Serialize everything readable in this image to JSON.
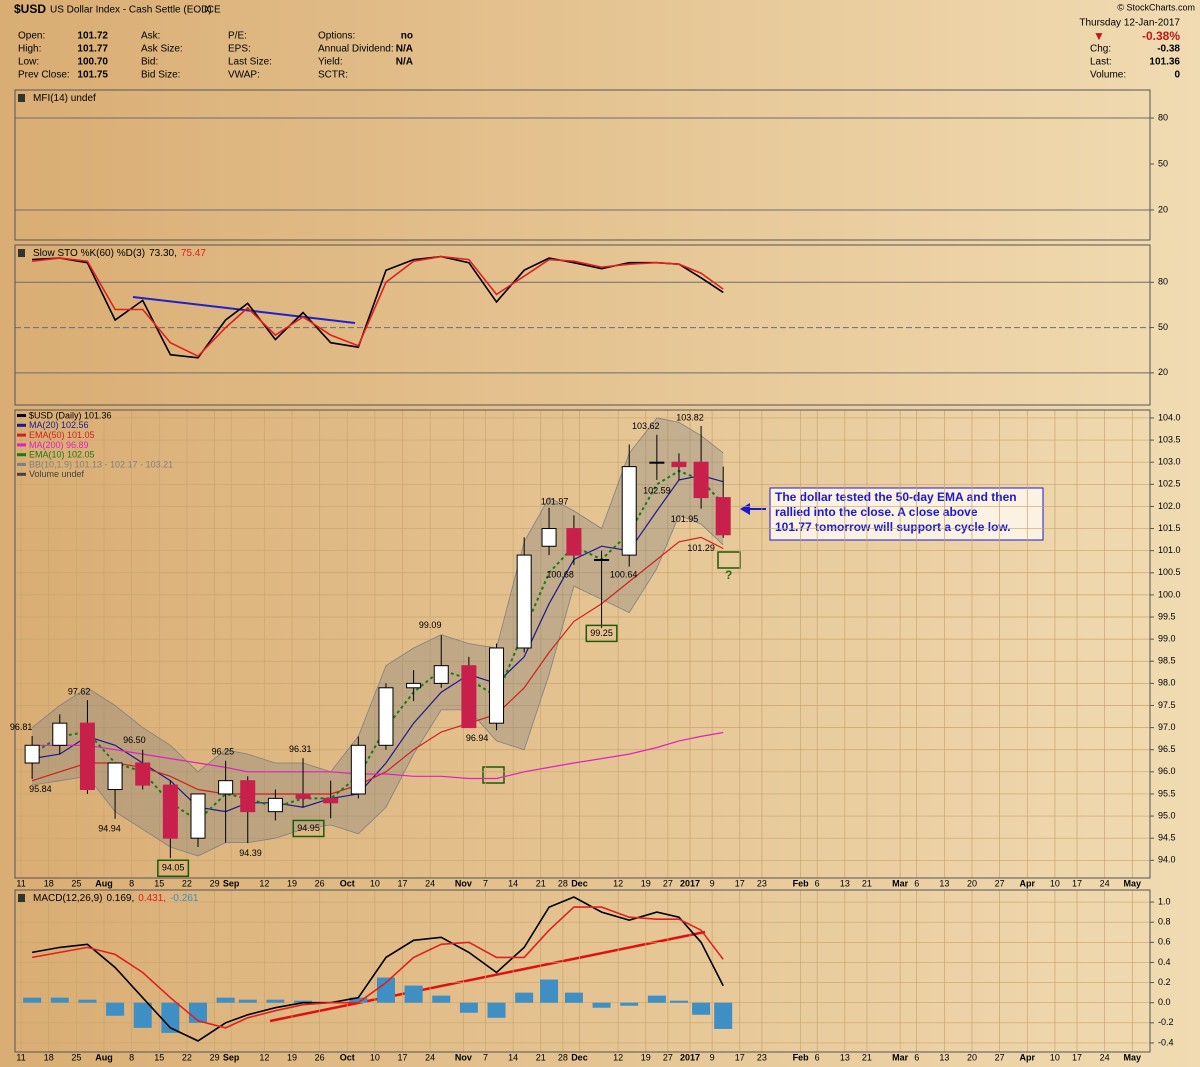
{
  "header": {
    "symbol": "$USD",
    "name": "US Dollar Index - Cash Settle (EOD)",
    "exchange": "ICE",
    "copyright": "© StockCharts.com",
    "columns": [
      [
        {
          "label": "Open:",
          "value": "101.72"
        },
        {
          "label": "High:",
          "value": "101.77"
        },
        {
          "label": "Low:",
          "value": "100.70"
        },
        {
          "label": "Prev Close:",
          "value": "101.75"
        }
      ],
      [
        {
          "label": "Ask:"
        },
        {
          "label": "Ask Size:"
        },
        {
          "label": "Bid:"
        },
        {
          "label": "Bid Size:"
        }
      ],
      [
        {
          "label": "P/E:"
        },
        {
          "label": "EPS:"
        },
        {
          "label": "Last Size:"
        },
        {
          "label": "VWAP:"
        }
      ],
      [
        {
          "label": "Options:",
          "value": "no"
        },
        {
          "label": "Annual Dividend:",
          "value": "N/A"
        },
        {
          "label": "Yield:",
          "value": "N/A"
        },
        {
          "label": "SCTR:"
        }
      ]
    ],
    "date": "Thursday  12-Jan-2017",
    "change_pct": "-0.38%",
    "right_rows": [
      {
        "label": "Chg:",
        "value": "-0.38"
      },
      {
        "label": "Last:",
        "value": "101.36"
      },
      {
        "label": "Volume:",
        "value": "0"
      }
    ]
  },
  "callout": {
    "lines": [
      "The dollar tested the 50-day EMA and then",
      "rallied into the close. A close above",
      "101.77 tomorrow will support a cycle low."
    ]
  },
  "chart_data": [
    {
      "type": "line",
      "title": "MFI(14) undef",
      "ylim": [
        0.4,
        98.3
      ],
      "yticks": [
        80,
        50,
        20
      ],
      "series": []
    },
    {
      "type": "line",
      "title": "Slow STO %K(60) %D(3)",
      "ylim": [
        -1.3,
        104.7
      ],
      "yticks": [
        80,
        50,
        20
      ],
      "midline": "dashed",
      "x": [
        2,
        7,
        12,
        17,
        22,
        27,
        32,
        37,
        41,
        46,
        51,
        56,
        61,
        66,
        71,
        76,
        81,
        86,
        91,
        95.5,
        100,
        105,
        110,
        115,
        119,
        123,
        127
      ],
      "series": [
        {
          "name": "73.30,",
          "color": "#000000",
          "values": [
            95,
            96,
            93,
            55,
            68,
            32,
            30,
            55,
            66,
            42,
            60,
            40,
            37,
            88,
            95,
            97,
            93,
            67,
            88,
            96,
            93,
            89,
            93,
            93,
            92,
            83,
            73.3
          ]
        },
        {
          "name": "75.47",
          "color": "#e02020",
          "values": [
            94,
            96,
            94,
            62,
            62,
            40,
            31,
            50,
            63,
            45,
            57,
            45,
            38,
            80,
            94,
            97,
            95,
            72,
            84,
            95,
            94,
            90,
            92,
            93,
            92,
            86,
            75.47
          ]
        }
      ]
    },
    {
      "type": "candlestick",
      "name": "$USD (Daily) 101.36",
      "ylim": [
        93.6,
        104.18
      ],
      "x_axis_labels": true,
      "xlim": [
        -1.1,
        204.2
      ],
      "xticks": [
        {
          "value": 0,
          "label": "11"
        },
        {
          "value": 5,
          "label": "18"
        },
        {
          "value": 10,
          "label": "25"
        },
        {
          "value": 15,
          "label": "Aug"
        },
        {
          "value": 20,
          "label": "8"
        },
        {
          "value": 25,
          "label": "15"
        },
        {
          "value": 30,
          "label": "22"
        },
        {
          "value": 35,
          "label": "29"
        },
        {
          "value": 38,
          "label": "Sep"
        },
        {
          "value": 44,
          "label": "12"
        },
        {
          "value": 49,
          "label": "19"
        },
        {
          "value": 54,
          "label": "26"
        },
        {
          "value": 59,
          "label": "Oct"
        },
        {
          "value": 64,
          "label": "10"
        },
        {
          "value": 69,
          "label": "17"
        },
        {
          "value": 74,
          "label": "24"
        },
        {
          "value": 80,
          "label": "Nov"
        },
        {
          "value": 84,
          "label": "7"
        },
        {
          "value": 89,
          "label": "14"
        },
        {
          "value": 94,
          "label": "21"
        },
        {
          "value": 98,
          "label": "28"
        },
        {
          "value": 101,
          "label": "Dec"
        },
        {
          "value": 108,
          "label": "12"
        },
        {
          "value": 113,
          "label": "19"
        },
        {
          "value": 117,
          "label": "27"
        },
        {
          "value": 121,
          "label": "2017"
        },
        {
          "value": 125,
          "label": "9"
        },
        {
          "value": 130,
          "label": "17"
        },
        {
          "value": 134,
          "label": "23"
        },
        {
          "value": 141,
          "label": "Feb"
        },
        {
          "value": 144,
          "label": "6"
        },
        {
          "value": 149,
          "label": "13"
        },
        {
          "value": 153,
          "label": "21"
        },
        {
          "value": 159,
          "label": "Mar"
        },
        {
          "value": 162,
          "label": "6"
        },
        {
          "value": 167,
          "label": "13"
        },
        {
          "value": 172,
          "label": "20"
        },
        {
          "value": 177,
          "label": "27"
        },
        {
          "value": 182,
          "label": "Apr"
        },
        {
          "value": 187,
          "label": "10"
        },
        {
          "value": 191,
          "label": "17"
        },
        {
          "value": 196,
          "label": "24"
        },
        {
          "value": 201,
          "label": "May"
        }
      ],
      "yticks": [
        {
          "value": 104,
          "label": "104.0"
        },
        {
          "value": 103.5,
          "label": "103.5"
        },
        {
          "value": 103,
          "label": "103.0"
        },
        {
          "value": 102.5,
          "label": "102.5"
        },
        {
          "value": 102,
          "label": "102.0"
        },
        {
          "value": 101.5,
          "label": "101.5"
        },
        {
          "value": 101,
          "label": "101.0"
        },
        {
          "value": 100.5,
          "label": "100.5"
        },
        {
          "value": 100,
          "label": "100.0"
        },
        {
          "value": 99.5,
          "label": "99.5"
        },
        {
          "value": 99,
          "label": "99.0"
        },
        {
          "value": 98.5,
          "label": "98.5"
        },
        {
          "value": 98,
          "label": "98.0"
        },
        {
          "value": 97.5,
          "label": "97.5"
        },
        {
          "value": 97,
          "label": "97.0"
        },
        {
          "value": 96.5,
          "label": "96.5"
        },
        {
          "value": 96,
          "label": "96.0"
        },
        {
          "value": 95.5,
          "label": "95.5"
        },
        {
          "value": 95,
          "label": "95.0"
        },
        {
          "value": 94.5,
          "label": "94.5"
        },
        {
          "value": 94,
          "label": "94.0"
        }
      ],
      "x": [
        2,
        7,
        12,
        17,
        22,
        27,
        32,
        37,
        41,
        46,
        51,
        56,
        61,
        66,
        71,
        76,
        81,
        86,
        91,
        95.5,
        100,
        105,
        110,
        115,
        119,
        123,
        127
      ],
      "open": [
        96.2,
        96.6,
        97.1,
        95.6,
        96.2,
        95.7,
        94.5,
        95.5,
        95.8,
        95.1,
        95.5,
        95.4,
        95.5,
        96.6,
        97.9,
        98.0,
        98.4,
        97.1,
        98.8,
        101.1,
        101.5,
        100.8,
        100.9,
        103.0,
        103.0,
        103.0,
        102.2
      ],
      "high": [
        96.81,
        97.3,
        97.62,
        96.2,
        96.5,
        95.8,
        95.5,
        96.25,
        95.9,
        95.6,
        96.31,
        95.8,
        96.8,
        98.0,
        98.3,
        99.09,
        98.6,
        98.9,
        101.3,
        101.97,
        101.8,
        101.0,
        103.4,
        103.62,
        103.2,
        103.82,
        102.9
      ],
      "low": [
        95.84,
        96.4,
        95.5,
        94.94,
        95.6,
        94.05,
        94.3,
        94.4,
        94.39,
        94.9,
        95.2,
        94.95,
        95.4,
        96.5,
        97.6,
        97.9,
        97.1,
        96.94,
        98.7,
        100.9,
        100.68,
        99.25,
        100.64,
        102.6,
        102.59,
        101.95,
        101.29
      ],
      "close": [
        96.6,
        97.1,
        95.6,
        96.2,
        95.7,
        94.5,
        95.5,
        95.8,
        95.1,
        95.4,
        95.4,
        95.3,
        96.6,
        97.9,
        98.0,
        98.4,
        97.0,
        98.8,
        100.9,
        101.5,
        100.9,
        100.8,
        102.9,
        103.0,
        102.9,
        102.2,
        101.36
      ],
      "up_color": "#000000",
      "down_color": "#c8204a",
      "band": {
        "name": "BB(10,1.9) 101.13 - 102.17 - 103.21",
        "color": "#808080",
        "upper": [
          97.0,
          97.5,
          97.9,
          97.5,
          97.0,
          96.6,
          96.0,
          96.5,
          96.4,
          96.2,
          96.2,
          96.0,
          96.8,
          98.4,
          98.8,
          99.1,
          98.9,
          98.8,
          101.2,
          102.2,
          101.9,
          101.5,
          103.2,
          104.0,
          103.9,
          103.6,
          103.21
        ],
        "lower": [
          95.7,
          95.8,
          95.9,
          95.1,
          94.7,
          94.3,
          94.1,
          94.4,
          94.4,
          94.5,
          94.7,
          94.8,
          94.6,
          95.2,
          96.4,
          97.4,
          97.4,
          96.7,
          96.5,
          98.2,
          100.2,
          99.9,
          99.6,
          100.6,
          101.8,
          101.6,
          101.13
        ]
      },
      "overlays": [
        {
          "name": "MA(20) 102.56",
          "color": "#1a1a8c",
          "values": [
            96.3,
            96.4,
            96.8,
            96.6,
            96.2,
            95.8,
            95.2,
            95.1,
            95.3,
            95.3,
            95.2,
            95.4,
            95.5,
            96.2,
            97.1,
            97.8,
            98.2,
            98.0,
            98.6,
            99.8,
            100.8,
            101.1,
            101.0,
            101.9,
            102.6,
            102.7,
            102.56
          ]
        },
        {
          "name": "EMA(50) 101.05",
          "color": "#cc2222",
          "values": [
            95.8,
            96.0,
            96.2,
            96.2,
            96.1,
            95.9,
            95.6,
            95.5,
            95.5,
            95.5,
            95.5,
            95.5,
            95.7,
            96.0,
            96.5,
            96.9,
            97.1,
            97.3,
            97.9,
            98.7,
            99.4,
            99.8,
            100.3,
            100.8,
            101.2,
            101.3,
            101.05
          ]
        },
        {
          "name": "MA(200) 96.89",
          "color": "#e020c0",
          "values": [
            96.6,
            96.6,
            96.6,
            96.5,
            96.4,
            96.3,
            96.2,
            96.1,
            96.0,
            96.0,
            96.0,
            96.0,
            95.95,
            95.95,
            95.9,
            95.9,
            95.85,
            95.85,
            96.0,
            96.1,
            96.2,
            96.3,
            96.4,
            96.55,
            96.7,
            96.8,
            96.89
          ]
        },
        {
          "name": "EMA(10) 102.05",
          "color": "#1a7a1a",
          "style": "dashed",
          "values": [
            96.4,
            96.8,
            96.9,
            96.2,
            96.0,
            95.3,
            94.9,
            95.5,
            95.4,
            95.2,
            95.4,
            95.4,
            95.9,
            97.0,
            97.8,
            98.3,
            98.1,
            97.7,
            99.2,
            100.5,
            101.1,
            100.8,
            101.4,
            102.5,
            102.8,
            102.6,
            102.05
          ]
        }
      ],
      "legend_texts": [
        "Volume undef"
      ],
      "annotations": [
        {
          "text": "96.81",
          "x": 0,
          "y": 97.0
        },
        {
          "text": "95.84",
          "x": 3.5,
          "y": 95.6
        },
        {
          "text": "97.62",
          "x": 10.5,
          "y": 97.8
        },
        {
          "text": "96.50",
          "x": 20.5,
          "y": 96.7
        },
        {
          "text": "94.94",
          "x": 16,
          "y": 94.7
        },
        {
          "text": "94.05",
          "x": 27.5,
          "y": 93.82,
          "boxed": true
        },
        {
          "text": "96.25",
          "x": 36.5,
          "y": 96.45
        },
        {
          "text": "94.39",
          "x": 41.5,
          "y": 94.15
        },
        {
          "text": "96.31",
          "x": 50.5,
          "y": 96.5
        },
        {
          "text": "94.95",
          "x": 52,
          "y": 94.72,
          "boxed": true
        },
        {
          "text": "99.09",
          "x": 74,
          "y": 99.3
        },
        {
          "text": "96.94",
          "x": 82.5,
          "y": 96.75
        },
        {
          "text": "101.97",
          "x": 96.5,
          "y": 102.1
        },
        {
          "text": "100.68",
          "x": 97.5,
          "y": 100.45
        },
        {
          "text": "99.25",
          "x": 105,
          "y": 99.13,
          "boxed": true
        },
        {
          "text": "100.64",
          "x": 109,
          "y": 100.45
        },
        {
          "text": "103.62",
          "x": 113,
          "y": 103.8
        },
        {
          "text": "102.59",
          "x": 115,
          "y": 102.35
        },
        {
          "text": "103.82",
          "x": 121,
          "y": 104.0
        },
        {
          "text": "101.95",
          "x": 120,
          "y": 101.7
        },
        {
          "text": "101.29",
          "x": 123,
          "y": 101.05
        },
        {
          "text": "?",
          "x": 128,
          "y": 100.43,
          "color": "#2a6a10"
        }
      ]
    },
    {
      "type": "macd",
      "title": "MACD(12,26,9)",
      "ylim": [
        -0.49,
        1.12
      ],
      "x_axis_labels": true,
      "yticks": [
        {
          "value": 1,
          "label": "1.0"
        },
        {
          "value": 0.8,
          "label": "0.8"
        },
        {
          "value": 0.6,
          "label": "0.6"
        },
        {
          "value": 0.4,
          "label": "0.4"
        },
        {
          "value": 0.2,
          "label": "0.2"
        },
        {
          "value": 0,
          "label": "0.0"
        },
        {
          "value": -0.2,
          "label": "-0.2"
        },
        {
          "value": -0.4,
          "label": "-0.4"
        }
      ],
      "x": [
        2,
        7,
        12,
        17,
        22,
        27,
        32,
        37,
        41,
        46,
        51,
        56,
        61,
        66,
        71,
        76,
        81,
        86,
        91,
        95.5,
        100,
        105,
        110,
        115,
        119,
        123,
        127
      ],
      "series": [
        {
          "name": "0.169,",
          "color": "#000000",
          "values": [
            0.5,
            0.55,
            0.58,
            0.35,
            0.05,
            -0.25,
            -0.38,
            -0.2,
            -0.12,
            -0.05,
            0.0,
            0.0,
            0.05,
            0.45,
            0.62,
            0.65,
            0.5,
            0.3,
            0.55,
            0.95,
            1.05,
            0.9,
            0.82,
            0.9,
            0.85,
            0.6,
            0.169
          ]
        },
        {
          "name": "0.431,",
          "color": "#e02020",
          "values": [
            0.45,
            0.5,
            0.55,
            0.48,
            0.3,
            0.05,
            -0.18,
            -0.25,
            -0.15,
            -0.08,
            -0.02,
            0.0,
            0.0,
            0.2,
            0.45,
            0.58,
            0.6,
            0.45,
            0.45,
            0.72,
            0.95,
            0.95,
            0.85,
            0.83,
            0.83,
            0.72,
            0.431
          ]
        }
      ],
      "histogram": {
        "name": "-0.261",
        "color": "#3f8fc4",
        "values": [
          0.05,
          0.05,
          0.03,
          -0.13,
          -0.25,
          -0.3,
          -0.2,
          0.05,
          0.03,
          0.03,
          0.02,
          0,
          0.05,
          0.25,
          0.17,
          0.07,
          -0.1,
          -0.15,
          0.1,
          0.23,
          0.1,
          -0.05,
          -0.03,
          0.07,
          0.02,
          -0.12,
          -0.261
        ]
      }
    }
  ]
}
